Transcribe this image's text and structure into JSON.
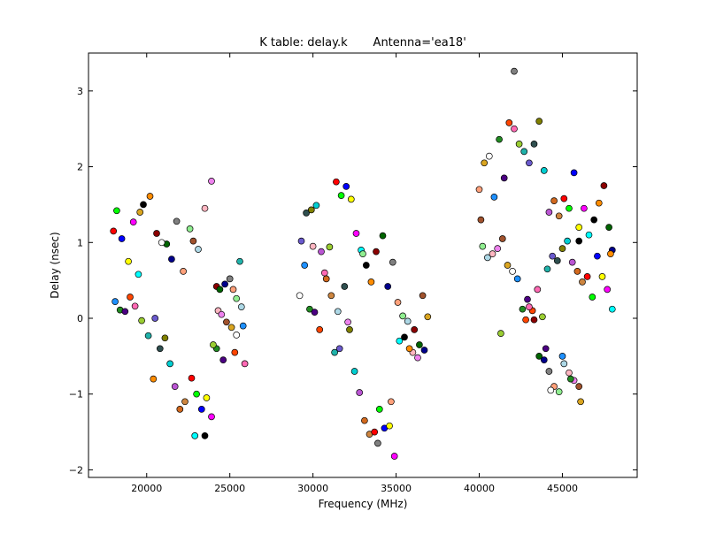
{
  "chart_data": {
    "type": "scatter",
    "title": "K table: delay.k       Antenna='ea18'",
    "xlabel": "Frequency (MHz)",
    "ylabel": "Delay (nsec)",
    "xlim": [
      16500,
      49500
    ],
    "ylim": [
      -2.1,
      3.5
    ],
    "x_ticks": [
      20000,
      25000,
      30000,
      35000,
      40000,
      45000
    ],
    "x_tick_labels": [
      "20000",
      "25000",
      "30000",
      "35000",
      "40000",
      "45000"
    ],
    "y_ticks": [
      -2,
      -1,
      0,
      1,
      2,
      3
    ],
    "y_tick_labels": [
      "−2",
      "−1",
      "0",
      "1",
      "2",
      "3"
    ],
    "grid": false,
    "legend": "none",
    "marker": "circle",
    "palette": [
      "#ff0000",
      "#00ff00",
      "#0000ff",
      "#ffff00",
      "#ff00ff",
      "#00ffff",
      "#000000",
      "#ff8c00",
      "#8b0000",
      "#006400",
      "#00008b",
      "#808080",
      "#ffa07a",
      "#90ee90",
      "#add8e6",
      "#ffb6c1",
      "#ee82ee",
      "#a0522d",
      "#daa520",
      "#ffffff",
      "#1e90ff",
      "#228b22",
      "#4b0082",
      "#ff4500",
      "#ff69b4",
      "#9acd32",
      "#20b2aa",
      "#6a5acd",
      "#2f4f4f",
      "#808000",
      "#00ced1",
      "#ba55d3",
      "#d2691e",
      "#cd853f"
    ],
    "points": [
      [
        18000,
        1.15
      ],
      [
        18200,
        1.42
      ],
      [
        18500,
        1.05
      ],
      [
        18900,
        0.75
      ],
      [
        19200,
        1.27
      ],
      [
        19500,
        0.58
      ],
      [
        19800,
        1.5
      ],
      [
        20200,
        1.61
      ],
      [
        20600,
        1.12
      ],
      [
        21200,
        0.98
      ],
      [
        21500,
        0.78
      ],
      [
        21800,
        1.28
      ],
      [
        22200,
        0.62
      ],
      [
        22600,
        1.18
      ],
      [
        23100,
        0.91
      ],
      [
        23500,
        1.45
      ],
      [
        23900,
        1.81
      ],
      [
        22800,
        1.02
      ],
      [
        19600,
        1.4
      ],
      [
        20900,
        1.0
      ],
      [
        18100,
        0.22
      ],
      [
        18400,
        0.11
      ],
      [
        18700,
        0.09
      ],
      [
        19000,
        0.28
      ],
      [
        19300,
        0.16
      ],
      [
        19700,
        -0.03
      ],
      [
        20100,
        -0.23
      ],
      [
        20500,
        0.0
      ],
      [
        20800,
        -0.4
      ],
      [
        21100,
        -0.26
      ],
      [
        21400,
        -0.6
      ],
      [
        21700,
        -0.9
      ],
      [
        22000,
        -1.2
      ],
      [
        22300,
        -1.1
      ],
      [
        22700,
        -0.79
      ],
      [
        23000,
        -1.0
      ],
      [
        23300,
        -1.2
      ],
      [
        23600,
        -1.05
      ],
      [
        23900,
        -1.3
      ],
      [
        22900,
        -1.55
      ],
      [
        23500,
        -1.55
      ],
      [
        20400,
        -0.8
      ],
      [
        24200,
        0.42
      ],
      [
        24400,
        0.38
      ],
      [
        24700,
        0.45
      ],
      [
        25000,
        0.52
      ],
      [
        25200,
        0.38
      ],
      [
        25400,
        0.26
      ],
      [
        25700,
        0.15
      ],
      [
        24300,
        0.1
      ],
      [
        24500,
        0.05
      ],
      [
        24800,
        -0.05
      ],
      [
        25100,
        -0.12
      ],
      [
        25400,
        -0.22
      ],
      [
        25800,
        -0.1
      ],
      [
        24200,
        -0.4
      ],
      [
        24600,
        -0.55
      ],
      [
        25300,
        -0.45
      ],
      [
        25900,
        -0.6
      ],
      [
        24000,
        -0.35
      ],
      [
        25600,
        0.75
      ],
      [
        29300,
        1.02
      ],
      [
        29600,
        1.39
      ],
      [
        29900,
        1.43
      ],
      [
        30200,
        1.49
      ],
      [
        30500,
        0.88
      ],
      [
        30800,
        0.52
      ],
      [
        31100,
        0.3
      ],
      [
        31400,
        1.8
      ],
      [
        31700,
        1.62
      ],
      [
        32000,
        1.74
      ],
      [
        32300,
        1.57
      ],
      [
        32600,
        1.12
      ],
      [
        32900,
        0.9
      ],
      [
        33200,
        0.7
      ],
      [
        33500,
        0.48
      ],
      [
        33800,
        0.88
      ],
      [
        34200,
        1.09
      ],
      [
        34500,
        0.42
      ],
      [
        34800,
        0.74
      ],
      [
        35100,
        0.21
      ],
      [
        35400,
        0.03
      ],
      [
        35700,
        -0.04
      ],
      [
        36000,
        -0.45
      ],
      [
        36300,
        -0.52
      ],
      [
        36600,
        0.3
      ],
      [
        36900,
        0.02
      ],
      [
        29200,
        0.3
      ],
      [
        29500,
        0.7
      ],
      [
        29800,
        0.12
      ],
      [
        30100,
        0.08
      ],
      [
        30400,
        -0.15
      ],
      [
        30700,
        0.6
      ],
      [
        31000,
        0.94
      ],
      [
        31300,
        -0.45
      ],
      [
        31600,
        -0.4
      ],
      [
        31900,
        0.42
      ],
      [
        32200,
        -0.15
      ],
      [
        32500,
        -0.7
      ],
      [
        32800,
        -0.98
      ],
      [
        33100,
        -1.35
      ],
      [
        33400,
        -1.53
      ],
      [
        33700,
        -1.5
      ],
      [
        34000,
        -1.2
      ],
      [
        34300,
        -1.45
      ],
      [
        34600,
        -1.42
      ],
      [
        34900,
        -1.82
      ],
      [
        35200,
        -0.3
      ],
      [
        35500,
        -0.25
      ],
      [
        35800,
        -0.4
      ],
      [
        36100,
        -0.15
      ],
      [
        36400,
        -0.35
      ],
      [
        36700,
        -0.42
      ],
      [
        33900,
        -1.65
      ],
      [
        34700,
        -1.1
      ],
      [
        33000,
        0.85
      ],
      [
        31500,
        0.09
      ],
      [
        30000,
        0.95
      ],
      [
        32100,
        -0.05
      ],
      [
        40100,
        1.3
      ],
      [
        40300,
        2.05
      ],
      [
        40600,
        2.14
      ],
      [
        40900,
        1.6
      ],
      [
        41200,
        2.36
      ],
      [
        41500,
        1.85
      ],
      [
        41800,
        2.58
      ],
      [
        42100,
        2.5
      ],
      [
        42400,
        2.3
      ],
      [
        42700,
        2.2
      ],
      [
        43000,
        2.05
      ],
      [
        43300,
        2.3
      ],
      [
        43600,
        2.6
      ],
      [
        43900,
        1.95
      ],
      [
        44200,
        1.4
      ],
      [
        44500,
        1.55
      ],
      [
        44800,
        1.35
      ],
      [
        45100,
        1.58
      ],
      [
        45400,
        1.45
      ],
      [
        45700,
        1.92
      ],
      [
        46000,
        1.2
      ],
      [
        46300,
        1.45
      ],
      [
        46600,
        1.1
      ],
      [
        46900,
        1.3
      ],
      [
        47200,
        1.52
      ],
      [
        47500,
        1.75
      ],
      [
        47800,
        1.2
      ],
      [
        48000,
        0.9
      ],
      [
        42100,
        3.26
      ],
      [
        40000,
        1.7
      ],
      [
        40200,
        0.95
      ],
      [
        40500,
        0.8
      ],
      [
        40800,
        0.85
      ],
      [
        41100,
        0.92
      ],
      [
        41400,
        1.05
      ],
      [
        41700,
        0.7
      ],
      [
        42000,
        0.62
      ],
      [
        42300,
        0.52
      ],
      [
        42600,
        0.12
      ],
      [
        42900,
        0.25
      ],
      [
        43200,
        0.1
      ],
      [
        43500,
        0.38
      ],
      [
        43800,
        0.02
      ],
      [
        44100,
        0.65
      ],
      [
        44400,
        0.82
      ],
      [
        44700,
        0.76
      ],
      [
        45000,
        0.92
      ],
      [
        45300,
        1.02
      ],
      [
        45600,
        0.74
      ],
      [
        45900,
        0.62
      ],
      [
        46200,
        0.48
      ],
      [
        46500,
        0.55
      ],
      [
        46800,
        0.28
      ],
      [
        47100,
        0.82
      ],
      [
        47400,
        0.55
      ],
      [
        47700,
        0.38
      ],
      [
        48000,
        0.12
      ],
      [
        46000,
        1.02
      ],
      [
        47900,
        0.85
      ],
      [
        43300,
        -0.02
      ],
      [
        43600,
        -0.5
      ],
      [
        43900,
        -0.55
      ],
      [
        44200,
        -0.7
      ],
      [
        44500,
        -0.9
      ],
      [
        44800,
        -0.97
      ],
      [
        45100,
        -0.6
      ],
      [
        45400,
        -0.72
      ],
      [
        45700,
        -0.82
      ],
      [
        46000,
        -0.9
      ],
      [
        46100,
        -1.1
      ],
      [
        44300,
        -0.95
      ],
      [
        45000,
        -0.5
      ],
      [
        45500,
        -0.8
      ],
      [
        44000,
        -0.4
      ],
      [
        42800,
        -0.02
      ],
      [
        43000,
        0.15
      ],
      [
        41300,
        -0.2
      ]
    ]
  }
}
